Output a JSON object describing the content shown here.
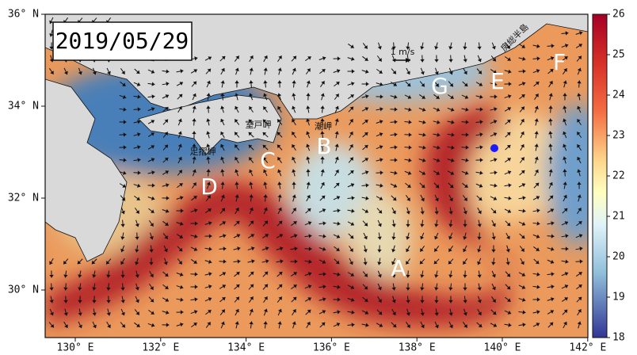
{
  "date": "2019/05/29",
  "lat_ticks": [
    "36° N",
    "34° N",
    "32° N",
    "30° N"
  ],
  "lon_ticks": [
    "130° E",
    "132° E",
    "134° E",
    "136° E",
    "138° E",
    "140° E",
    "142° E"
  ],
  "colorbar_ticks": [
    26,
    25,
    24,
    23,
    22,
    21,
    20,
    19,
    18
  ],
  "features": [
    "A",
    "B",
    "C",
    "D",
    "E",
    "F",
    "G"
  ],
  "places": [
    "足摺岬",
    "室戸岬",
    "潮岬",
    "房総半島"
  ],
  "scale": "1 m/s"
}
